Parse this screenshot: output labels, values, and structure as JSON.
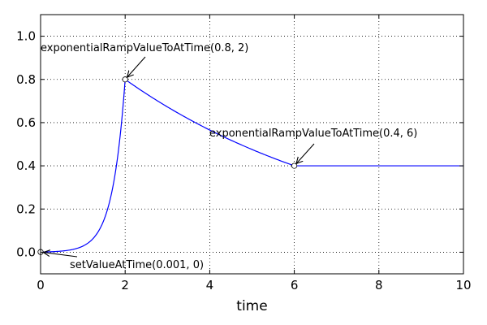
{
  "chart_data": {
    "type": "line",
    "title": "",
    "xlabel": "time",
    "ylabel": "",
    "xlim": [
      0,
      10
    ],
    "ylim": [
      -0.1,
      1.1
    ],
    "grid": true,
    "x_ticks": [
      0,
      2,
      4,
      6,
      8,
      10
    ],
    "y_ticks": [
      0.0,
      0.2,
      0.4,
      0.6,
      0.8,
      1.0
    ],
    "x_tick_labels": [
      "0",
      "2",
      "4",
      "6",
      "8",
      "10"
    ],
    "y_tick_labels": [
      "0.0",
      "0.2",
      "0.4",
      "0.6",
      "0.8",
      "1.0"
    ],
    "series": [
      {
        "color": "#0000ff",
        "segments": [
          {
            "kind": "exponential",
            "x0": 0,
            "y0": 0.001,
            "x1": 2,
            "y1": 0.8
          },
          {
            "kind": "exponential",
            "x0": 2,
            "y0": 0.8,
            "x1": 6,
            "y1": 0.4
          },
          {
            "kind": "constant",
            "x0": 6,
            "y0": 0.4,
            "x1": 10,
            "y1": 0.4
          }
        ]
      }
    ],
    "markers": [
      {
        "x": 0,
        "y": 0.001
      },
      {
        "x": 2,
        "y": 0.8
      },
      {
        "x": 6,
        "y": 0.4
      }
    ],
    "annotations": [
      {
        "text": "setValueAtTime(0.001, 0)",
        "point": [
          0,
          0.001
        ]
      },
      {
        "text": "exponentialRampValueToAtTime(0.8, 2)",
        "point": [
          2,
          0.8
        ]
      },
      {
        "text": "exponentialRampValueToAtTime(0.4, 6)",
        "point": [
          6,
          0.4
        ]
      }
    ]
  }
}
